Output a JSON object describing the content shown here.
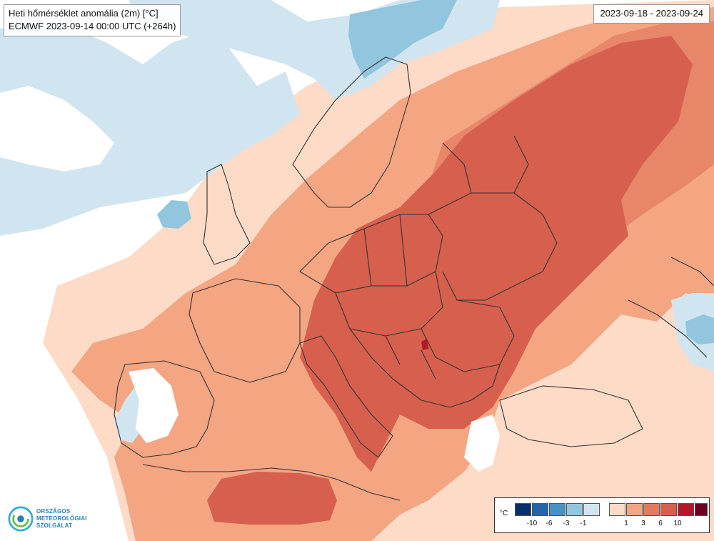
{
  "title": {
    "line1": "Heti hőmérséklet anomália (2m) [°C]",
    "line2": "ECMWF 2023-09-14 00:00 UTC (+264h)"
  },
  "date_range": "2023-09-18 - 2023-09-24",
  "logo": {
    "line1": "ORSZÁGOS",
    "line2": "METEOROLÓGIAI",
    "line3": "SZOLGÁLAT"
  },
  "legend": {
    "unit": "°C",
    "cold_ticks": [
      "-10",
      "-6",
      "-3",
      "-1"
    ],
    "warm_ticks": [
      "1",
      "3",
      "6",
      "10"
    ],
    "cold_colors": [
      "#08306b",
      "#2166ac",
      "#4393c3",
      "#92c5de",
      "#d1e5f0"
    ],
    "warm_colors": [
      "#fddbc7",
      "#f4a582",
      "#e07b5c",
      "#d6604d",
      "#b2182b",
      "#67001f"
    ]
  },
  "colors": {
    "neutral": "#ffffff",
    "light_blue": "#d1e5f0",
    "mid_blue": "#92c5de",
    "blue": "#4393c3",
    "light_orange": "#fddbc7",
    "orange": "#f4a582",
    "mid_red": "#e07b5c",
    "red": "#d6604d",
    "dark_red": "#b2182b",
    "border_line": "#333333"
  }
}
